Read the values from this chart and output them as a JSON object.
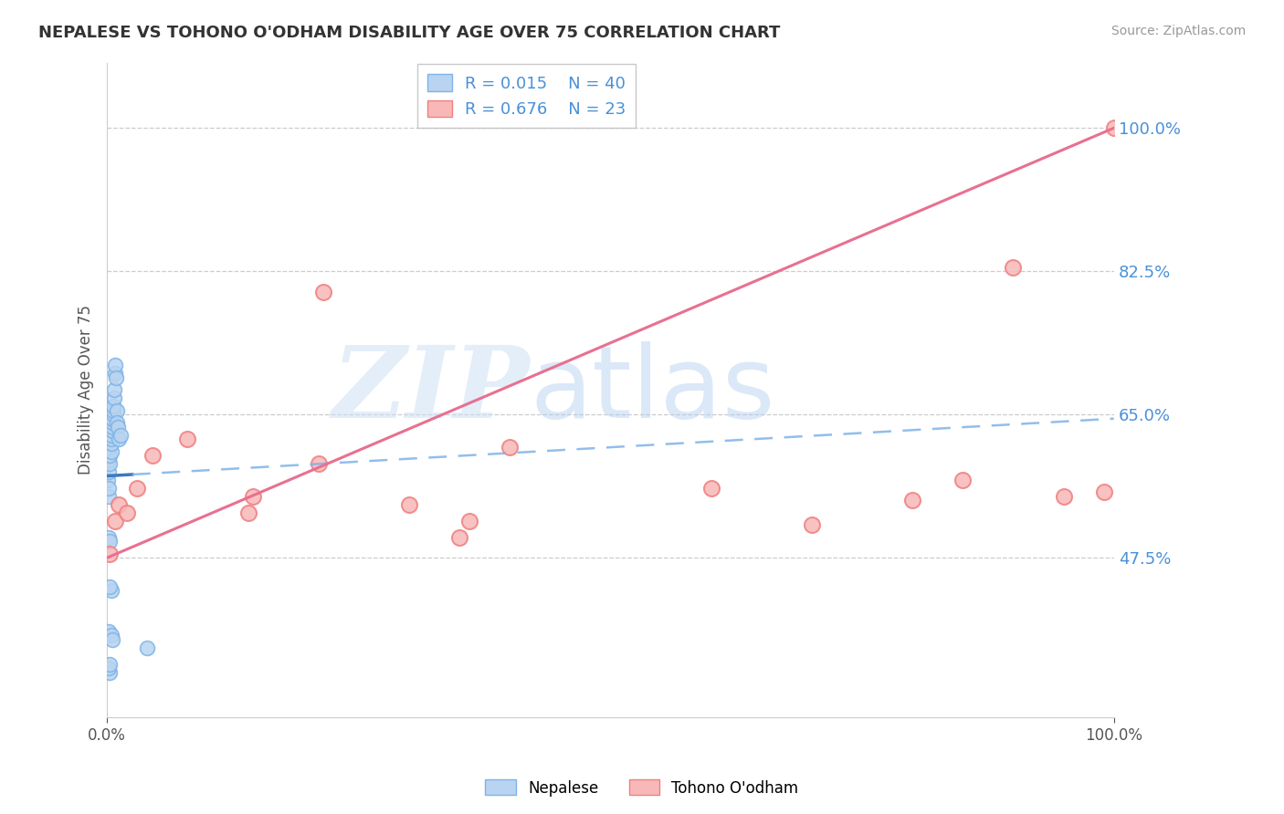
{
  "title": "NEPALESE VS TOHONO O'ODHAM DISABILITY AGE OVER 75 CORRELATION CHART",
  "source": "Source: ZipAtlas.com",
  "ylabel": "Disability Age Over 75",
  "xlim": [
    0.0,
    100.0
  ],
  "ylim": [
    28.0,
    108.0
  ],
  "yticks": [
    47.5,
    65.0,
    82.5,
    100.0
  ],
  "xticks": [
    0.0,
    100.0
  ],
  "blue_R": 0.015,
  "blue_N": 40,
  "pink_R": 0.676,
  "pink_N": 23,
  "nepalese_x": [
    0.1,
    0.2,
    0.2,
    0.3,
    0.3,
    0.3,
    0.4,
    0.4,
    0.4,
    0.4,
    0.5,
    0.5,
    0.5,
    0.5,
    0.6,
    0.6,
    0.6,
    0.7,
    0.7,
    0.8,
    0.8,
    0.9,
    1.0,
    1.0,
    1.1,
    1.2,
    1.3,
    0.2,
    0.3,
    0.4,
    0.3,
    0.2,
    0.4,
    0.5,
    4.0,
    0.3,
    0.2,
    0.3,
    0.2,
    0.15
  ],
  "nepalese_y": [
    57.0,
    58.0,
    59.5,
    59.0,
    60.0,
    61.0,
    60.5,
    61.5,
    62.0,
    62.5,
    63.0,
    63.5,
    64.0,
    64.5,
    65.0,
    65.5,
    66.0,
    67.0,
    68.0,
    70.0,
    71.0,
    69.5,
    65.5,
    64.0,
    63.5,
    62.0,
    62.5,
    50.0,
    49.5,
    43.5,
    44.0,
    38.5,
    38.0,
    37.5,
    36.5,
    33.5,
    34.0,
    34.5,
    55.0,
    56.0
  ],
  "tohono_x": [
    0.3,
    0.8,
    1.2,
    2.0,
    3.0,
    4.5,
    8.0,
    14.0,
    14.5,
    21.0,
    21.5,
    30.0,
    35.0,
    36.0,
    40.0,
    60.0,
    70.0,
    80.0,
    85.0,
    90.0,
    95.0,
    99.0,
    100.0
  ],
  "tohono_y": [
    48.0,
    52.0,
    54.0,
    53.0,
    56.0,
    60.0,
    62.0,
    53.0,
    55.0,
    59.0,
    80.0,
    54.0,
    50.0,
    52.0,
    61.0,
    56.0,
    51.5,
    54.5,
    57.0,
    83.0,
    55.0,
    55.5,
    100.0
  ],
  "blue_trend_x0": 0.0,
  "blue_trend_y0": 57.5,
  "blue_trend_x1": 100.0,
  "blue_trend_y1": 64.5,
  "blue_solid_end": 2.5,
  "pink_trend_x0": 0.0,
  "pink_trend_y0": 47.5,
  "pink_trend_x1": 100.0,
  "pink_trend_y1": 100.0
}
